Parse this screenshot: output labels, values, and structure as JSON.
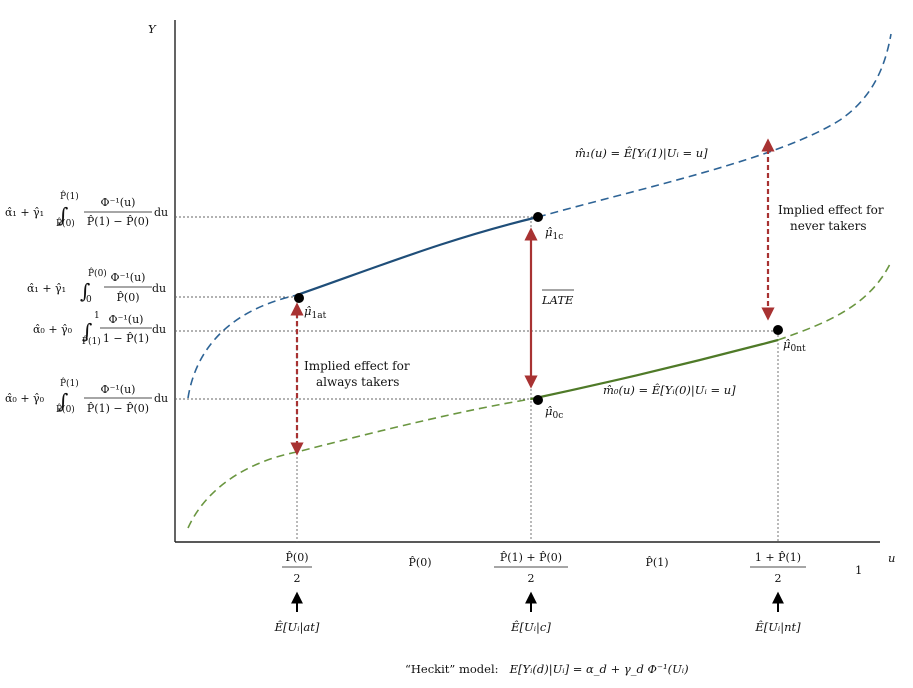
{
  "axes": {
    "y_label": "Y",
    "x_label": "u",
    "x_end_label": "1"
  },
  "y_labels": [
    {
      "a": "α̂₁ + γ̂₁",
      "int": "∫",
      "lo": "P̂(0)",
      "hi": "P̂(1)",
      "num": "Φ⁻¹(u)",
      "den": "P̂(1) −  P̂(0)",
      "du": "du"
    },
    {
      "a": "α̂₁ + γ̂₁",
      "int": "∫",
      "lo": "0",
      "hi": "P̂(0)",
      "num": "Φ⁻¹(u)",
      "den": "P̂(0)",
      "du": "du"
    },
    {
      "a": "α̂₀ + γ̂₀",
      "int": "∫",
      "lo": "P̂(1)",
      "hi": "1",
      "num": "Φ⁻¹(u)",
      "den": "1 − P̂(1)",
      "du": "du"
    },
    {
      "a": "α̂₀ + γ̂₀",
      "int": "∫",
      "lo": "P̂(0)",
      "hi": "P̂(1)",
      "num": "Φ⁻¹(u)",
      "den": "P̂(1) − P̂(0)",
      "du": "du"
    }
  ],
  "x_ticks": {
    "f1_num": "P̂(0)",
    "f1_den": "2",
    "p0": "P̂(0)",
    "f2_num": "P̂(1) + P̂(0)",
    "f2_den": "2",
    "p1": "P̂(1)",
    "f3_num": "1 + P̂(1)",
    "f3_den": "2"
  },
  "expectations": [
    "Ê[Uᵢ|at]",
    "Ê[Uᵢ|c]",
    "Ê[Uᵢ|nt]"
  ],
  "points": {
    "mu_1at": "μ̂",
    "sub_1at": "1at",
    "mu_1c": "μ̂",
    "sub_1c": "1c",
    "mu_0nt": "μ̂",
    "sub_0nt": "0nt",
    "mu_0c": "μ̂",
    "sub_0c": "0c"
  },
  "curves": {
    "m1": "m̂₁(u) = Ê[Yᵢ(1)|Uᵢ = u]",
    "m0": "m̂₀(u) = Ê[Yᵢ(0)|Uᵢ = u]"
  },
  "annotations": {
    "late": "LATE",
    "always_line1": "Implied effect for",
    "always_line2": "always takers",
    "never_line1": "Implied effect for",
    "never_line2": "never takers"
  },
  "footer": {
    "prefix": "“Heckit” model:",
    "formula": "E[Yᵢ(d)|Uᵢ] = α_d + γ_d Φ⁻¹(Uᵢ)"
  },
  "colors": {
    "m1_curve": "#1f4e79",
    "m0_curve": "#4f7a28",
    "effect_arrow": "#a83232",
    "guide": "#555555"
  }
}
